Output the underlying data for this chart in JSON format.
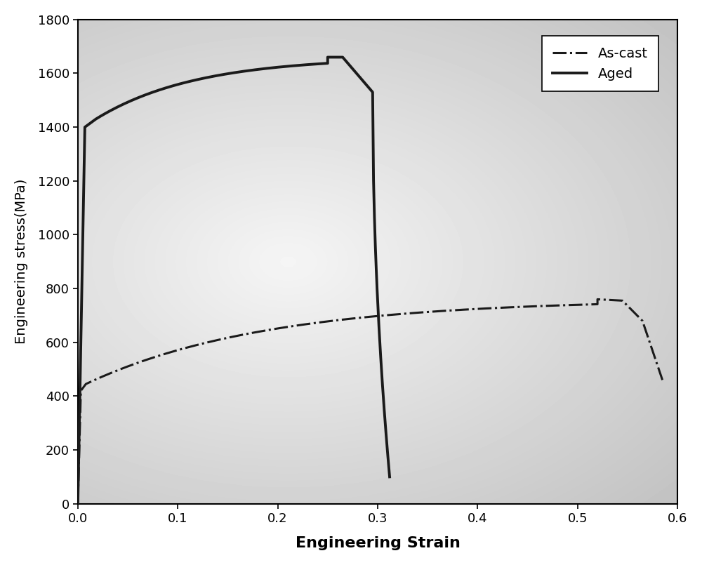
{
  "title": "",
  "xlabel": "Engineering Strain",
  "ylabel": "Engineering stress(MPa)",
  "xlim": [
    0,
    0.6
  ],
  "ylim": [
    0,
    1800
  ],
  "xticks": [
    0.0,
    0.1,
    0.2,
    0.3,
    0.4,
    0.5,
    0.6
  ],
  "yticks": [
    0,
    200,
    400,
    600,
    800,
    1000,
    1200,
    1400,
    1600,
    1800
  ],
  "xlabel_fontsize": 16,
  "ylabel_fontsize": 14,
  "tick_fontsize": 13,
  "legend_fontsize": 14,
  "line_color": "#1a1a1a",
  "background_color": "#e8e8e8",
  "outer_background": "#ffffff"
}
